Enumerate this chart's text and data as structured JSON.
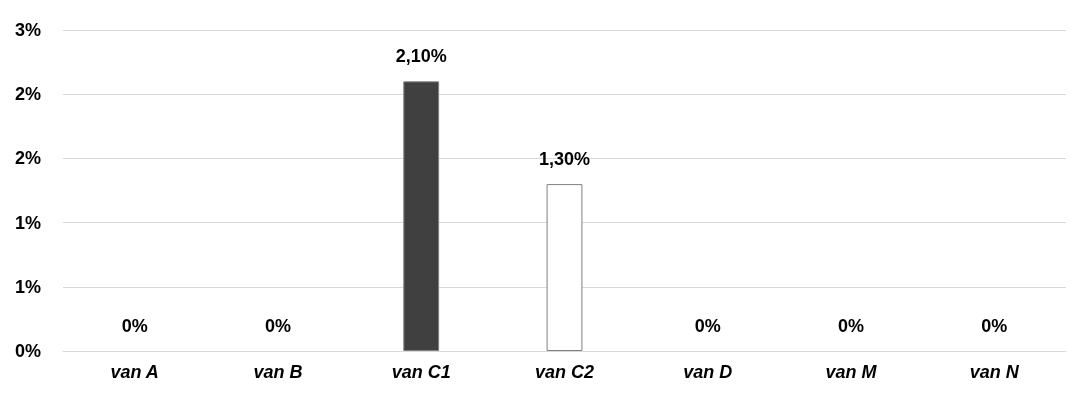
{
  "chart_data": {
    "type": "bar",
    "categories": [
      "van A",
      "van B",
      "van C1",
      "van C2",
      "van D",
      "van M",
      "van N"
    ],
    "values": [
      0,
      0,
      2.1,
      1.3,
      0,
      0,
      0
    ],
    "colors": [
      "#404040",
      "#404040",
      "#404040",
      "#ffffff",
      "#404040",
      "#404040",
      "#404040"
    ],
    "value_labels": [
      "0%",
      "0%",
      "2,10%",
      "1,30%",
      "0%",
      "0%",
      "0%"
    ],
    "ylim": [
      0,
      2.5
    ],
    "yticks": [
      {
        "value": 0,
        "label": "0%"
      },
      {
        "value": 0.5,
        "label": "1%"
      },
      {
        "value": 1,
        "label": "1%"
      },
      {
        "value": 1.5,
        "label": "2%"
      },
      {
        "value": 2,
        "label": "2%"
      },
      {
        "value": 2.5,
        "label": "3%"
      }
    ],
    "grid": "y"
  }
}
